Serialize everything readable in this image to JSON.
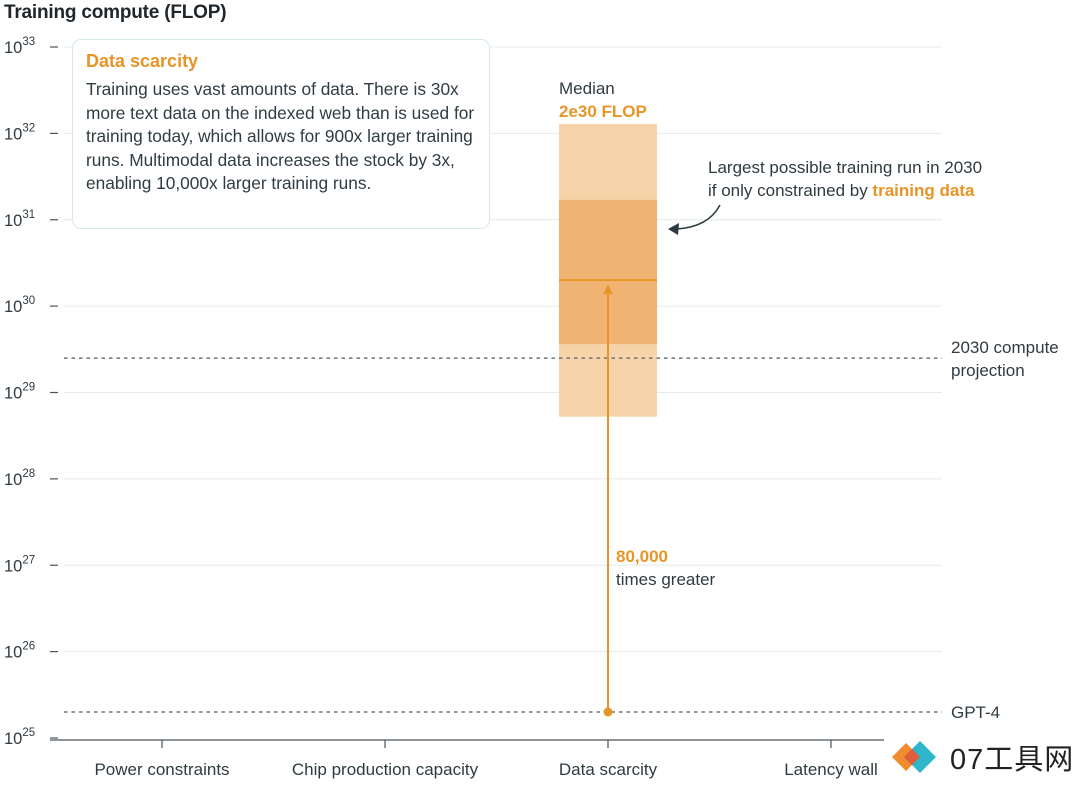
{
  "chart_data": {
    "type": "range",
    "y_axis_title": "Training compute (FLOP)",
    "y_scale": "log10",
    "ylim_exponents": [
      25,
      33
    ],
    "y_tick_exponents": [
      25,
      26,
      27,
      28,
      29,
      30,
      31,
      32,
      33
    ],
    "categories": [
      "Power constraints",
      "Chip production capacity",
      "Data scarcity",
      "Latency wall"
    ],
    "highlighted_category": "Data scarcity",
    "data_scarcity_range": {
      "outer_low_exp": 28.72,
      "outer_high_exp": 32.11,
      "inner_low_exp": 29.56,
      "inner_high_exp": 31.23,
      "median": 2e+30
    },
    "reference_lines": [
      {
        "name": "gpt4",
        "label": "GPT-4",
        "value": 2e+25
      },
      {
        "name": "projection",
        "label_line1": "2030 compute",
        "label_line2": "projection",
        "value": 2.5e+29
      }
    ],
    "median_label": {
      "line1": "Median",
      "line2": "2e30 FLOP"
    },
    "increase_label": {
      "value": "80,000",
      "text": "times greater"
    },
    "largest_run_annotation": {
      "line1": "Largest possible training run in 2030",
      "line2_prefix": "if only constrained by ",
      "line2_highlight": "training data"
    }
  },
  "info_box": {
    "title": "Data scarcity",
    "body": "Training uses vast amounts of data. There is 30x more text data on the indexed web than is used for training today, which allows for 900x larger training runs. Multimodal data increases the stock by 3x, enabling 10,000x larger training runs."
  },
  "colors": {
    "orange": "#e99427",
    "band_light": "#f6d3a9",
    "band_dark": "#efb374",
    "grid": "#e4ece9",
    "text": "#2b3a40",
    "dashed": "#6b7478"
  },
  "watermark": {
    "text": "07工具网"
  }
}
